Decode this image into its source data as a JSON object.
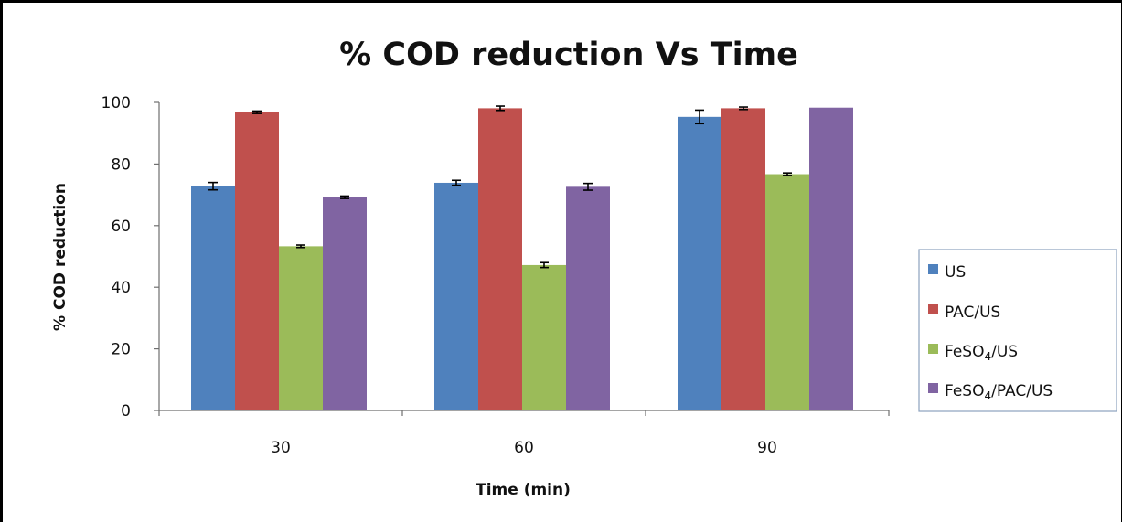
{
  "chart_data": {
    "type": "bar",
    "title": "% COD reduction Vs Time",
    "xlabel": "Time (min)",
    "ylabel": "% COD reduction",
    "categories": [
      "30",
      "60",
      "90"
    ],
    "ylim": [
      0,
      100
    ],
    "yticks": [
      0,
      20,
      40,
      60,
      80,
      100
    ],
    "grid": false,
    "legend_position": "right",
    "series": [
      {
        "name": "US",
        "legend_main": "US",
        "legend_sub": "",
        "legend_tail": "",
        "color": "#4f81bd",
        "values": [
          72.8,
          73.9,
          95.3
        ],
        "errors": [
          1.2,
          0.8,
          2.2
        ]
      },
      {
        "name": "PAC/US",
        "legend_main": "PAC/US",
        "legend_sub": "",
        "legend_tail": "",
        "color": "#c0504d",
        "values": [
          96.8,
          98.1,
          98.1
        ],
        "errors": [
          0.4,
          0.7,
          0.4
        ]
      },
      {
        "name": "FeSO4/US",
        "legend_main": "FeSO",
        "legend_sub": "4",
        "legend_tail": "/US",
        "color": "#9bbb59",
        "values": [
          53.3,
          47.2,
          76.7
        ],
        "errors": [
          0.4,
          0.8,
          0.4
        ]
      },
      {
        "name": "FeSO4/PAC/US",
        "legend_main": "FeSO",
        "legend_sub": "4",
        "legend_tail": "/PAC/US",
        "color": "#8064a2",
        "values": [
          69.2,
          72.6,
          98.3
        ],
        "errors": [
          0.4,
          1.1,
          0
        ]
      }
    ]
  }
}
